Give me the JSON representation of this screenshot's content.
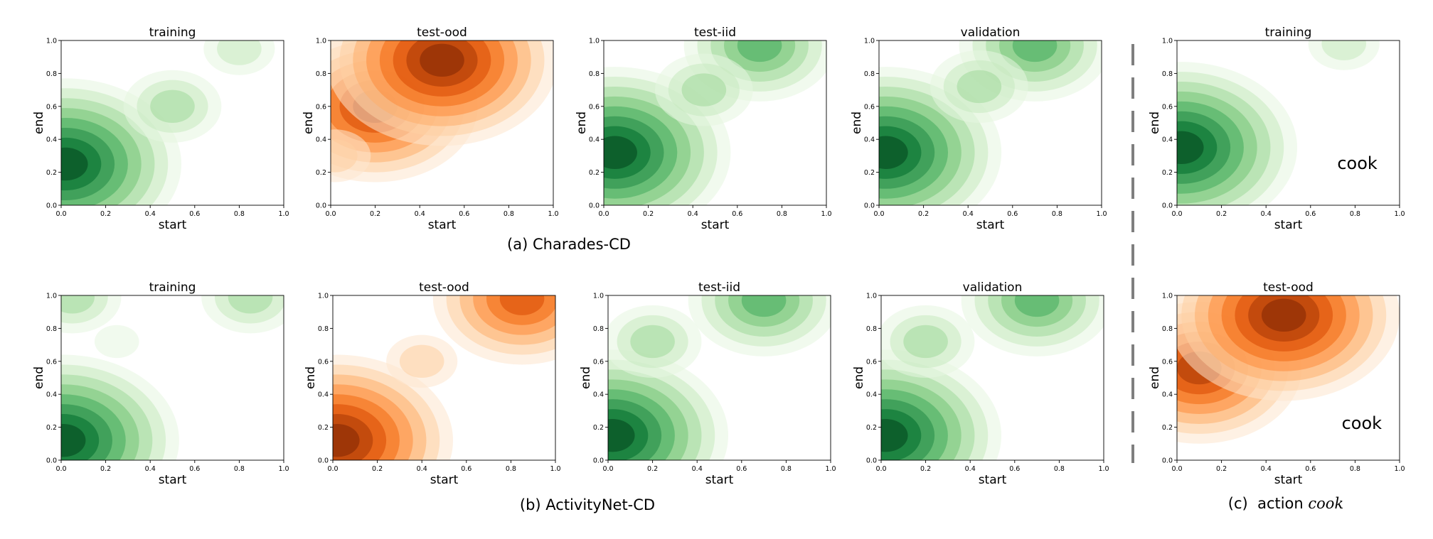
{
  "captions": {
    "a": "(a) Charades-CD",
    "b": "(b) ActivityNet-CD",
    "c_prefix": "(c)  action ",
    "c_italic": "cook"
  },
  "colors": {
    "green": [
      "#e5f5e0",
      "#c7e9c0",
      "#a1d99b",
      "#74c476",
      "#41ab5d",
      "#238b45",
      "#006d2c",
      "#00441b"
    ],
    "orange": [
      "#fee6ce",
      "#fdd0a2",
      "#fdae6b",
      "#fd8d3c",
      "#f16913",
      "#d94801",
      "#a63603",
      "#7f2704"
    ]
  },
  "chart_data": [
    {
      "type": "heatmap",
      "title": "training",
      "xlabel": "start",
      "ylabel": "end",
      "xlim": [
        0,
        1
      ],
      "ylim": [
        0,
        1
      ],
      "xticks": [
        "0.0",
        "0.2",
        "0.4",
        "0.6",
        "0.8",
        "1.0"
      ],
      "yticks": [
        "0.0",
        "0.2",
        "0.4",
        "0.6",
        "0.8",
        "1.0"
      ],
      "colormap": "green",
      "annotation": "",
      "density_modes": [
        {
          "x": 0.02,
          "y": 0.25,
          "weight": 1.0
        },
        {
          "x": 0.5,
          "y": 0.6,
          "weight": 0.35
        },
        {
          "x": 0.8,
          "y": 0.95,
          "weight": 0.25
        }
      ]
    },
    {
      "type": "heatmap",
      "title": "test-ood",
      "xlabel": "start",
      "ylabel": "end",
      "xlim": [
        0,
        1
      ],
      "ylim": [
        0,
        1
      ],
      "xticks": [
        "0.0",
        "0.2",
        "0.4",
        "0.6",
        "0.8",
        "1.0"
      ],
      "yticks": [
        "0.0",
        "0.2",
        "0.4",
        "0.6",
        "0.8",
        "1.0"
      ],
      "colormap": "orange",
      "annotation": "",
      "density_modes": [
        {
          "x": 0.2,
          "y": 0.6,
          "weight": 0.85
        },
        {
          "x": 0.5,
          "y": 0.88,
          "weight": 1.0
        },
        {
          "x": 0.02,
          "y": 0.3,
          "weight": 0.3
        }
      ]
    },
    {
      "type": "heatmap",
      "title": "test-iid",
      "xlabel": "start",
      "ylabel": "end",
      "xlim": [
        0,
        1
      ],
      "ylim": [
        0,
        1
      ],
      "xticks": [
        "0.0",
        "0.2",
        "0.4",
        "0.6",
        "0.8",
        "1.0"
      ],
      "yticks": [
        "0.0",
        "0.2",
        "0.4",
        "0.6",
        "0.8",
        "1.0"
      ],
      "colormap": "green",
      "annotation": "",
      "density_modes": [
        {
          "x": 0.05,
          "y": 0.32,
          "weight": 1.0
        },
        {
          "x": 0.7,
          "y": 0.97,
          "weight": 0.6
        },
        {
          "x": 0.45,
          "y": 0.7,
          "weight": 0.35
        }
      ]
    },
    {
      "type": "heatmap",
      "title": "validation",
      "xlabel": "start",
      "ylabel": "end",
      "xlim": [
        0,
        1
      ],
      "ylim": [
        0,
        1
      ],
      "xticks": [
        "0.0",
        "0.2",
        "0.4",
        "0.6",
        "0.8",
        "1.0"
      ],
      "yticks": [
        "0.0",
        "0.2",
        "0.4",
        "0.6",
        "0.8",
        "1.0"
      ],
      "colormap": "green",
      "annotation": "",
      "density_modes": [
        {
          "x": 0.03,
          "y": 0.32,
          "weight": 1.0
        },
        {
          "x": 0.7,
          "y": 0.97,
          "weight": 0.6
        },
        {
          "x": 0.45,
          "y": 0.72,
          "weight": 0.35
        }
      ]
    },
    {
      "type": "heatmap",
      "title": "training",
      "xlabel": "start",
      "ylabel": "end",
      "xlim": [
        0,
        1
      ],
      "ylim": [
        0,
        1
      ],
      "xticks": [
        "0.0",
        "0.2",
        "0.4",
        "0.6",
        "0.8",
        "1.0"
      ],
      "yticks": [
        "0.0",
        "0.2",
        "0.4",
        "0.6",
        "0.8",
        "1.0"
      ],
      "colormap": "green",
      "annotation": "cook",
      "density_modes": [
        {
          "x": 0.02,
          "y": 0.35,
          "weight": 1.0
        },
        {
          "x": 0.75,
          "y": 0.98,
          "weight": 0.3
        }
      ]
    },
    {
      "type": "heatmap",
      "title": "training",
      "xlabel": "start",
      "ylabel": "end",
      "xlim": [
        0,
        1
      ],
      "ylim": [
        0,
        1
      ],
      "xticks": [
        "0.0",
        "0.2",
        "0.4",
        "0.6",
        "0.8",
        "1.0"
      ],
      "yticks": [
        "0.0",
        "0.2",
        "0.4",
        "0.6",
        "0.8",
        "1.0"
      ],
      "colormap": "green",
      "annotation": "",
      "density_modes": [
        {
          "x": 0.01,
          "y": 0.12,
          "weight": 1.0
        },
        {
          "x": 0.05,
          "y": 0.99,
          "weight": 0.4
        },
        {
          "x": 0.85,
          "y": 0.99,
          "weight": 0.35
        },
        {
          "x": 0.25,
          "y": 0.72,
          "weight": 0.15
        }
      ]
    },
    {
      "type": "heatmap",
      "title": "test-ood",
      "xlabel": "start",
      "ylabel": "end",
      "xlim": [
        0,
        1
      ],
      "ylim": [
        0,
        1
      ],
      "xticks": [
        "0.0",
        "0.2",
        "0.4",
        "0.6",
        "0.8",
        "1.0"
      ],
      "yticks": [
        "0.0",
        "0.2",
        "0.4",
        "0.6",
        "0.8",
        "1.0"
      ],
      "colormap": "orange",
      "annotation": "",
      "density_modes": [
        {
          "x": 0.02,
          "y": 0.12,
          "weight": 1.0
        },
        {
          "x": 0.85,
          "y": 0.98,
          "weight": 0.8
        },
        {
          "x": 0.4,
          "y": 0.6,
          "weight": 0.3
        }
      ]
    },
    {
      "type": "heatmap",
      "title": "test-iid",
      "xlabel": "start",
      "ylabel": "end",
      "xlim": [
        0,
        1
      ],
      "ylim": [
        0,
        1
      ],
      "xticks": [
        "0.0",
        "0.2",
        "0.4",
        "0.6",
        "0.8",
        "1.0"
      ],
      "yticks": [
        "0.0",
        "0.2",
        "0.4",
        "0.6",
        "0.8",
        "1.0"
      ],
      "colormap": "green",
      "annotation": "",
      "density_modes": [
        {
          "x": 0.02,
          "y": 0.15,
          "weight": 1.0
        },
        {
          "x": 0.7,
          "y": 0.97,
          "weight": 0.6
        },
        {
          "x": 0.2,
          "y": 0.72,
          "weight": 0.35
        }
      ]
    },
    {
      "type": "heatmap",
      "title": "validation",
      "xlabel": "start",
      "ylabel": "end",
      "xlim": [
        0,
        1
      ],
      "ylim": [
        0,
        1
      ],
      "xticks": [
        "0.0",
        "0.2",
        "0.4",
        "0.6",
        "0.8",
        "1.0"
      ],
      "yticks": [
        "0.0",
        "0.2",
        "0.4",
        "0.6",
        "0.8",
        "1.0"
      ],
      "colormap": "green",
      "annotation": "",
      "density_modes": [
        {
          "x": 0.02,
          "y": 0.15,
          "weight": 1.0
        },
        {
          "x": 0.7,
          "y": 0.97,
          "weight": 0.6
        },
        {
          "x": 0.2,
          "y": 0.72,
          "weight": 0.35
        }
      ]
    },
    {
      "type": "heatmap",
      "title": "test-ood",
      "xlabel": "start",
      "ylabel": "end",
      "xlim": [
        0,
        1
      ],
      "ylim": [
        0,
        1
      ],
      "xticks": [
        "0.0",
        "0.2",
        "0.4",
        "0.6",
        "0.8",
        "1.0"
      ],
      "yticks": [
        "0.0",
        "0.2",
        "0.4",
        "0.6",
        "0.8",
        "1.0"
      ],
      "colormap": "orange",
      "annotation": "cook",
      "density_modes": [
        {
          "x": 0.1,
          "y": 0.56,
          "weight": 0.9
        },
        {
          "x": 0.48,
          "y": 0.88,
          "weight": 1.0
        }
      ]
    }
  ]
}
